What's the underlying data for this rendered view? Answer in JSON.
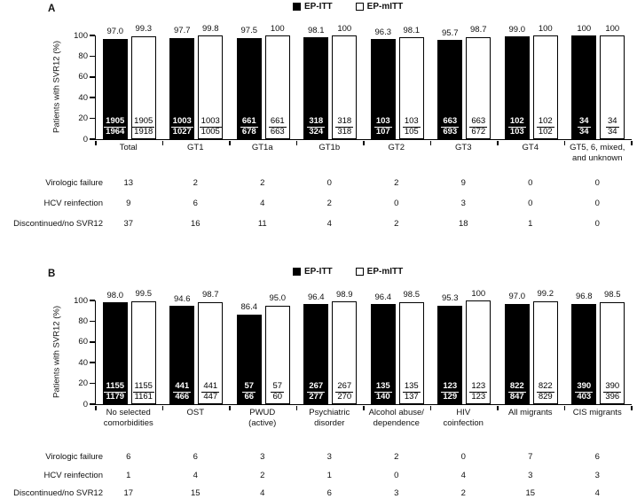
{
  "figure": {
    "background": "#ffffff",
    "axis_color": "#000000",
    "bar_fill_ep_itt": "#000000",
    "bar_fill_ep_mitt": "#ffffff"
  },
  "chart_data": [
    {
      "type": "bar",
      "panel": "A",
      "ylabel": "Patients with SVR12 (%)",
      "ylim": [
        0,
        100
      ],
      "yticks": [
        0,
        20,
        40,
        60,
        80,
        100
      ],
      "grid": false,
      "legend_position": "top-center",
      "categories": [
        "Total",
        "GT1",
        "GT1a",
        "GT1b",
        "GT2",
        "GT3",
        "GT4",
        "GT5, 6, mixed,\nand unknown"
      ],
      "series": [
        {
          "name": "EP-ITT",
          "color": "#000000",
          "values": [
            97.0,
            97.7,
            97.5,
            98.1,
            96.3,
            95.7,
            99.0,
            100
          ],
          "value_labels": [
            "97.0",
            "97.7",
            "97.5",
            "98.1",
            "96.3",
            "95.7",
            "99.0",
            "100"
          ],
          "numerators": [
            "1905",
            "1003",
            "661",
            "318",
            "103",
            "663",
            "102",
            "34"
          ],
          "denominators": [
            "1964",
            "1027",
            "678",
            "324",
            "107",
            "693",
            "103",
            "34"
          ]
        },
        {
          "name": "EP-mITT",
          "color": "#ffffff",
          "values": [
            99.3,
            99.8,
            100,
            100,
            98.1,
            98.7,
            100,
            100
          ],
          "value_labels": [
            "99.3",
            "99.8",
            "100",
            "100",
            "98.1",
            "98.7",
            "100",
            "100"
          ],
          "numerators": [
            "1905",
            "1003",
            "661",
            "318",
            "103",
            "663",
            "102",
            "34"
          ],
          "denominators": [
            "1918",
            "1005",
            "663",
            "318",
            "105",
            "672",
            "102",
            "34"
          ]
        }
      ],
      "table_rows": [
        {
          "label": "Virologic failure",
          "values": [
            "13",
            "2",
            "2",
            "0",
            "2",
            "9",
            "0",
            "0"
          ]
        },
        {
          "label": "HCV reinfection",
          "values": [
            "9",
            "6",
            "4",
            "2",
            "0",
            "3",
            "0",
            "0"
          ]
        },
        {
          "label": "Discontinued/no SVR12",
          "values": [
            "37",
            "16",
            "11",
            "4",
            "2",
            "18",
            "1",
            "0"
          ]
        }
      ]
    },
    {
      "type": "bar",
      "panel": "B",
      "ylabel": "Patients with SVR12 (%)",
      "ylim": [
        0,
        100
      ],
      "yticks": [
        0,
        20,
        40,
        60,
        80,
        100
      ],
      "grid": false,
      "legend_position": "top-center",
      "categories": [
        "No selected\ncomorbidities",
        "OST",
        "PWUD\n(active)",
        "Psychiatric\ndisorder",
        "Alcohol abuse/\ndependence",
        "HIV\ncoinfection",
        "All migrants",
        "CIS migrants"
      ],
      "series": [
        {
          "name": "EP-ITT",
          "color": "#000000",
          "values": [
            98.0,
            94.6,
            86.4,
            96.4,
            96.4,
            95.3,
            97.0,
            96.8
          ],
          "value_labels": [
            "98.0",
            "94.6",
            "86.4",
            "96.4",
            "96.4",
            "95.3",
            "97.0",
            "96.8"
          ],
          "numerators": [
            "1155",
            "441",
            "57",
            "267",
            "135",
            "123",
            "822",
            "390"
          ],
          "denominators": [
            "1179",
            "466",
            "66",
            "277",
            "140",
            "129",
            "847",
            "403"
          ]
        },
        {
          "name": "EP-mITT",
          "color": "#ffffff",
          "values": [
            99.5,
            98.7,
            95.0,
            98.9,
            98.5,
            100,
            99.2,
            98.5
          ],
          "value_labels": [
            "99.5",
            "98.7",
            "95.0",
            "98.9",
            "98.5",
            "100",
            "99.2",
            "98.5"
          ],
          "numerators": [
            "1155",
            "441",
            "57",
            "267",
            "135",
            "123",
            "822",
            "390"
          ],
          "denominators": [
            "1161",
            "447",
            "60",
            "270",
            "137",
            "123",
            "829",
            "396"
          ]
        }
      ],
      "table_rows": [
        {
          "label": "Virologic failure",
          "values": [
            "6",
            "6",
            "3",
            "3",
            "2",
            "0",
            "7",
            "6"
          ]
        },
        {
          "label": "HCV reinfection",
          "values": [
            "1",
            "4",
            "2",
            "1",
            "0",
            "4",
            "3",
            "3"
          ]
        },
        {
          "label": "Discontinued/no SVR12",
          "values": [
            "17",
            "15",
            "4",
            "6",
            "3",
            "2",
            "15",
            "4"
          ]
        }
      ]
    }
  ]
}
